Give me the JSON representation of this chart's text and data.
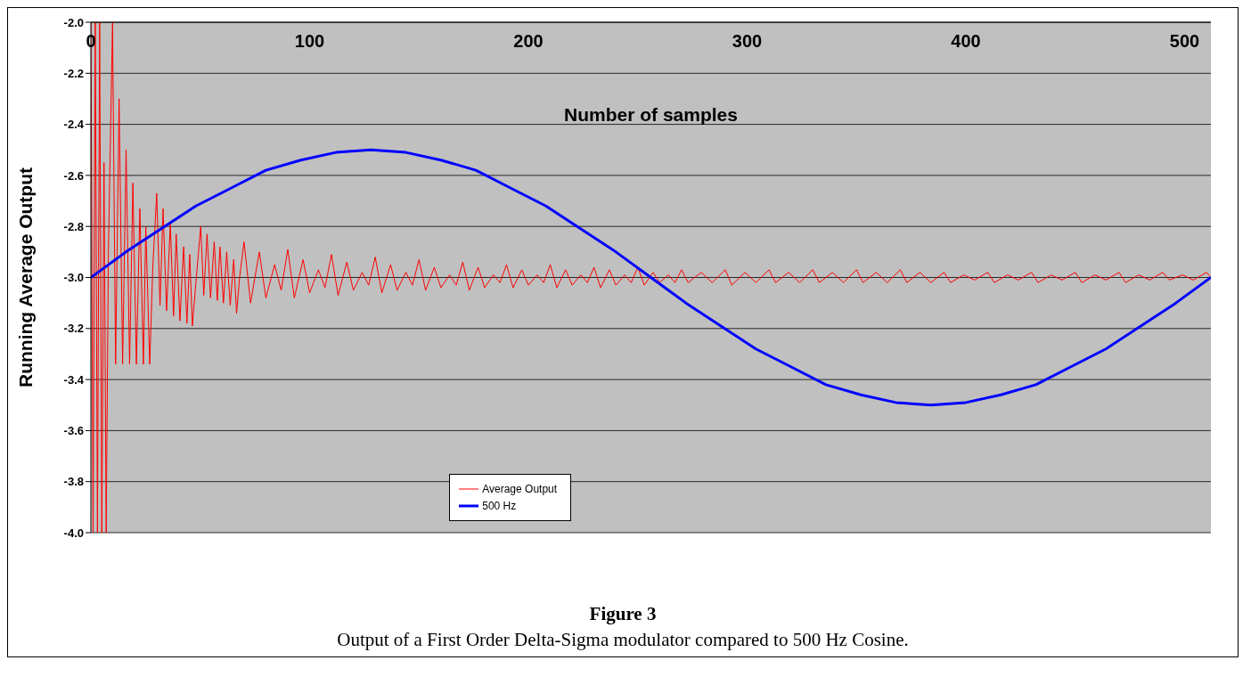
{
  "chart_data": {
    "type": "line",
    "title": "Figure 3",
    "subtitle": "Output of a First Order Delta-Sigma modulator compared to 500 Hz Cosine.",
    "xlabel": "Number of samples",
    "ylabel": "Running Average Output",
    "xlim": [
      0,
      512
    ],
    "xticks": [
      0,
      100,
      200,
      300,
      400,
      500
    ],
    "ylim": [
      -4,
      -2
    ],
    "yticks": [
      {
        "value": -4,
        "label": "-4.0"
      },
      {
        "value": -3.8,
        "label": "-3.8"
      },
      {
        "value": -3.6,
        "label": "-3.6"
      },
      {
        "value": -3.4,
        "label": "-3.4"
      },
      {
        "value": -3.2,
        "label": "-3.2"
      },
      {
        "value": -3,
        "label": "-3.0"
      },
      {
        "value": -2.8,
        "label": "-2.8"
      },
      {
        "value": -2.6,
        "label": "-2.6"
      },
      {
        "value": -2.4,
        "label": "-2.4"
      },
      {
        "value": -2.2,
        "label": "-2.2"
      },
      {
        "value": -2,
        "label": "-2.0"
      }
    ],
    "grid": "y",
    "legend": "bottom left",
    "marker": "none",
    "line_style": "solid",
    "series": [
      {
        "name": "Average Output",
        "color": "#ff0000",
        "x": [
          0,
          1,
          2,
          3,
          4,
          5,
          6,
          7,
          8,
          9.9,
          11.3,
          12.9,
          14.5,
          16.1,
          17.7,
          19.2,
          20.8,
          22.4,
          24,
          25.1,
          26.9,
          28.3,
          30.1,
          31.6,
          33,
          34.6,
          36.3,
          37.8,
          39,
          40.7,
          42.4,
          43.9,
          45.2,
          46.4,
          48,
          50.2,
          51.6,
          53.1,
          54.7,
          56.4,
          57.8,
          59,
          60.6,
          62.1,
          63.7,
          65.3,
          66.6,
          68,
          70,
          73,
          77,
          80,
          84,
          87,
          90,
          93,
          97,
          100,
          104,
          107,
          110,
          113,
          117,
          120,
          124,
          127,
          130,
          133,
          137,
          140,
          144,
          147,
          150,
          153,
          157,
          160,
          164,
          167,
          170,
          173,
          177,
          180,
          184,
          187,
          190,
          193,
          197,
          200,
          204,
          207,
          210,
          213,
          217,
          220,
          224,
          227,
          230,
          233,
          237,
          240,
          244,
          247,
          250,
          253,
          257,
          260,
          264,
          267,
          270,
          273,
          279,
          284,
          290,
          293,
          299,
          304,
          310,
          313,
          319,
          324,
          330,
          333,
          339,
          344,
          350,
          353,
          359,
          364,
          370,
          373,
          379,
          384,
          390,
          393,
          399,
          404,
          410,
          413,
          419,
          424,
          430,
          433,
          439,
          444,
          450,
          453,
          459,
          464,
          470,
          473,
          479,
          484,
          490,
          493,
          499,
          504,
          510,
          512
        ],
        "values": [
          -2,
          -4,
          -2,
          -4,
          -2,
          -4,
          -2.55,
          -4,
          -2.9,
          -2,
          -3.34,
          -2.3,
          -3.34,
          -2.5,
          -3.34,
          -2.63,
          -3.34,
          -2.73,
          -3.34,
          -2.8,
          -3.34,
          -2.96,
          -2.67,
          -3.11,
          -2.73,
          -3.13,
          -2.79,
          -3.15,
          -2.83,
          -3.17,
          -2.88,
          -3.18,
          -2.91,
          -3.19,
          -3.02,
          -2.8,
          -3.07,
          -2.83,
          -3.08,
          -2.86,
          -3.09,
          -2.88,
          -3.1,
          -2.9,
          -3.11,
          -2.93,
          -3.14,
          -3,
          -2.86,
          -3.1,
          -2.9,
          -3.08,
          -2.95,
          -3.05,
          -2.89,
          -3.08,
          -2.93,
          -3.06,
          -2.97,
          -3.04,
          -2.91,
          -3.07,
          -2.94,
          -3.05,
          -2.98,
          -3.03,
          -2.92,
          -3.06,
          -2.95,
          -3.05,
          -2.98,
          -3.03,
          -2.93,
          -3.05,
          -2.96,
          -3.04,
          -2.99,
          -3.03,
          -2.94,
          -3.05,
          -2.96,
          -3.04,
          -2.99,
          -3.02,
          -2.95,
          -3.04,
          -2.97,
          -3.03,
          -2.99,
          -3.02,
          -2.95,
          -3.04,
          -2.97,
          -3.03,
          -2.99,
          -3.02,
          -2.96,
          -3.04,
          -2.97,
          -3.03,
          -2.99,
          -3.02,
          -2.96,
          -3.03,
          -2.98,
          -3.02,
          -2.99,
          -3.02,
          -2.97,
          -3.02,
          -2.98,
          -3.02,
          -2.97,
          -3.03,
          -2.98,
          -3.02,
          -2.97,
          -3.02,
          -2.98,
          -3.02,
          -2.97,
          -3.02,
          -2.98,
          -3.02,
          -2.97,
          -3.02,
          -2.98,
          -3.02,
          -2.97,
          -3.02,
          -2.98,
          -3.02,
          -2.98,
          -3.02,
          -2.99,
          -3.01,
          -2.98,
          -3.02,
          -2.99,
          -3.01,
          -2.98,
          -3.02,
          -2.99,
          -3.01,
          -2.98,
          -3.02,
          -2.99,
          -3.01,
          -2.98,
          -3.02,
          -2.99,
          -3.01,
          -2.98,
          -3.01,
          -2.99,
          -3.01,
          -2.98,
          -3
        ]
      },
      {
        "name": "500 Hz",
        "color": "#0000ff",
        "x": [
          0,
          16,
          32,
          48,
          64,
          80,
          96,
          112,
          128,
          144,
          160,
          176,
          192,
          208,
          224,
          240,
          256,
          272,
          288,
          304,
          320,
          336,
          352,
          368,
          384,
          400,
          416,
          432,
          448,
          464,
          480,
          496,
          512
        ],
        "values": [
          -3,
          -2.9,
          -2.81,
          -2.72,
          -2.65,
          -2.58,
          -2.54,
          -2.51,
          -2.5,
          -2.51,
          -2.54,
          -2.58,
          -2.65,
          -2.72,
          -2.81,
          -2.9,
          -3,
          -3.1,
          -3.19,
          -3.28,
          -3.35,
          -3.42,
          -3.46,
          -3.49,
          -3.5,
          -3.49,
          -3.46,
          -3.42,
          -3.35,
          -3.28,
          -3.19,
          -3.1,
          -3
        ]
      }
    ]
  }
}
